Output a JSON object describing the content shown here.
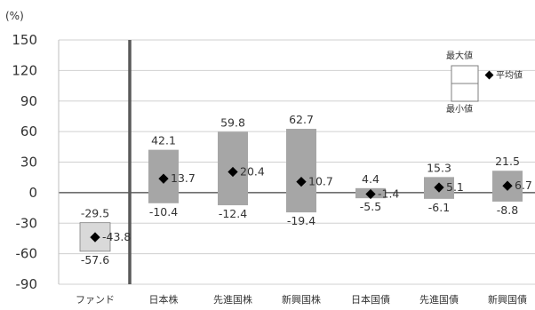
{
  "chart_data": {
    "type": "bar",
    "subtype": "floating-range-with-average-marker",
    "unit_label": "(%)",
    "ylim": [
      -90,
      150
    ],
    "yticks": [
      "150",
      "120",
      "90",
      "60",
      "30",
      "0",
      "-30",
      "-60",
      "-90"
    ],
    "grid": true,
    "categories": [
      "ファンド",
      "日本株",
      "先進国株",
      "新興国株",
      "日本国債",
      "先進国債",
      "新興国債"
    ],
    "series": [
      {
        "name": "最大値",
        "values": [
          -29.5,
          42.1,
          59.8,
          62.7,
          4.4,
          15.3,
          21.5
        ]
      },
      {
        "name": "最小値",
        "values": [
          -57.6,
          -10.4,
          -12.4,
          -19.4,
          -5.5,
          -6.1,
          -8.8
        ]
      },
      {
        "name": "平均値",
        "values": [
          -43.8,
          13.7,
          20.4,
          10.7,
          -1.4,
          5.1,
          6.7
        ]
      }
    ],
    "max_labels": [
      "-29.5",
      "42.1",
      "59.8",
      "62.7",
      "4.4",
      "15.3",
      "21.5"
    ],
    "min_labels": [
      "-57.6",
      "-10.4",
      "-12.4",
      "-19.4",
      "-5.5",
      "-6.1",
      "-8.8"
    ],
    "avg_labels": [
      "-43.8",
      "13.7",
      "20.4",
      "10.7",
      "-1.4",
      "5.1",
      "6.7"
    ],
    "legend": {
      "max": "最大値",
      "min": "最小値",
      "avg": "平均値",
      "placement": "top-right"
    },
    "colors": {
      "fund_bar": "#d9d9d9",
      "asset_bar": "#a6a6a6",
      "marker": "#000000",
      "grid": "#d0d0d0",
      "separator": "#595959"
    }
  }
}
